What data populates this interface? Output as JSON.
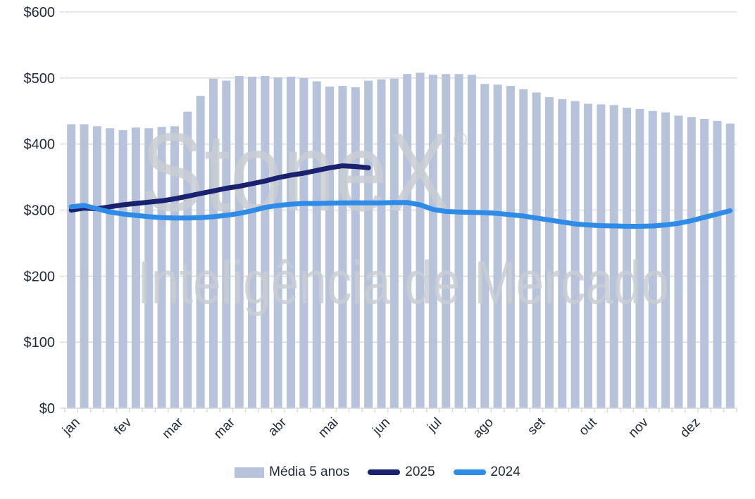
{
  "watermark": {
    "line1": "StoneX",
    "registered": "®",
    "line2": "Inteligência de Mercado"
  },
  "legend": {
    "items": [
      {
        "label": "Média 5 anos",
        "type": "bar",
        "color": "#b6c3da"
      },
      {
        "label": "2025",
        "type": "line",
        "color": "#1a2270"
      },
      {
        "label": "2024",
        "type": "line",
        "color": "#2e8ce8"
      }
    ],
    "position": "bottom"
  },
  "colors": {
    "bar": "#b6c3da",
    "line_2025": "#1a2270",
    "line_2024": "#2e8ce8",
    "grid": "#d9d9d9",
    "axis_text": "#212b3a",
    "watermark": "#c9cdd3"
  },
  "chart_data": {
    "type": "bar",
    "subtype": "combo-bar-line-weekly",
    "title": "",
    "xlabel": "",
    "ylabel": "",
    "grid": true,
    "legend_position": "bottom",
    "y_axis": {
      "min": 0,
      "max": 600,
      "step": 100,
      "tick_labels": [
        "$0",
        "$100",
        "$200",
        "$300",
        "$400",
        "$500",
        "$600"
      ]
    },
    "x_axis": {
      "n_categories": 52,
      "month_labels": [
        "jan",
        "fev",
        "mar",
        "mar",
        "abr",
        "mai",
        "jun",
        "jul",
        "ago",
        "set",
        "out",
        "nov",
        "dez"
      ],
      "label_category_indices": [
        0,
        4,
        8,
        12,
        16,
        20,
        24,
        28,
        32,
        36,
        40,
        44,
        48
      ]
    },
    "series": [
      {
        "name": "Média 5 anos",
        "type": "bar",
        "color": "#b6c3da",
        "values": [
          430,
          430,
          427,
          424,
          421,
          425,
          424,
          426,
          427,
          449,
          473,
          499,
          496,
          503,
          502,
          503,
          501,
          502,
          500,
          495,
          487,
          488,
          486,
          496,
          498,
          499,
          506,
          508,
          505,
          506,
          506,
          505,
          491,
          490,
          488,
          483,
          478,
          471,
          468,
          465,
          461,
          460,
          459,
          455,
          453,
          450,
          448,
          443,
          441,
          438,
          435,
          431
        ]
      },
      {
        "name": "2025",
        "type": "line",
        "color": "#1a2270",
        "values": [
          300,
          303,
          302,
          305,
          308,
          310,
          312,
          314,
          317,
          321,
          325,
          329,
          333,
          336,
          340,
          344,
          349,
          353,
          356,
          360,
          364,
          367,
          366,
          364
        ]
      },
      {
        "name": "2024",
        "type": "line",
        "color": "#2e8ce8",
        "values": [
          305,
          307,
          302,
          297,
          294,
          292,
          290,
          288.5,
          288,
          288,
          288.5,
          290,
          292,
          295,
          299,
          304,
          307,
          309,
          310,
          310,
          310.5,
          311,
          311,
          311,
          311,
          311.5,
          311.5,
          308,
          301,
          298,
          297,
          296.5,
          296,
          295,
          293,
          291,
          288,
          285,
          282,
          279,
          277.5,
          276.5,
          276,
          275.5,
          275.5,
          276,
          277.5,
          280,
          284,
          289,
          294,
          299
        ]
      }
    ]
  }
}
